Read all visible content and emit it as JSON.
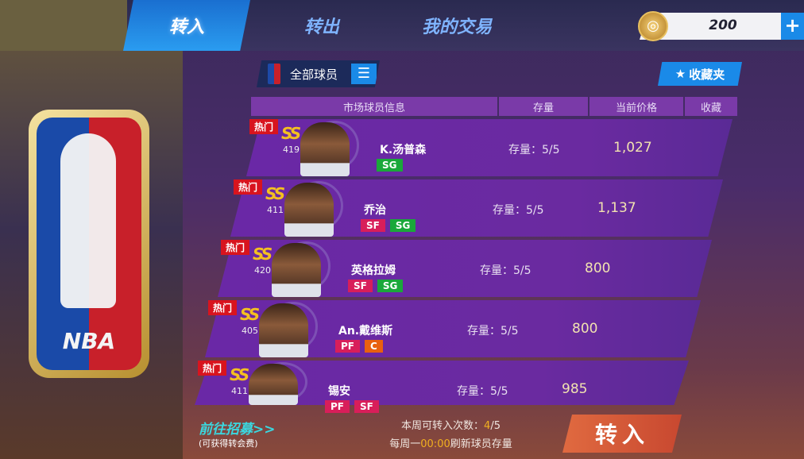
{
  "tabs": [
    {
      "label": "转入",
      "active": true
    },
    {
      "label": "转出"
    },
    {
      "label": "我的交易"
    }
  ],
  "coins": {
    "value": "200",
    "plus": "+"
  },
  "filter": {
    "label": "全部球员",
    "menu_icon": "hamburger-icon"
  },
  "favorites": {
    "label": "收藏夹",
    "icon": "star-icon"
  },
  "table_headers": [
    "市场球员信息",
    "存量",
    "当前价格",
    "收藏"
  ],
  "players": [
    {
      "hot": "热门",
      "grade": "SS",
      "rating": "419",
      "name": "K.汤普森",
      "positions": [
        {
          "p": "SG",
          "c": "green"
        }
      ],
      "stock": "存量：5/5",
      "price": "1,027"
    },
    {
      "hot": "热门",
      "grade": "SS",
      "rating": "411",
      "name": "乔治",
      "positions": [
        {
          "p": "SF",
          "c": "red"
        },
        {
          "p": "SG",
          "c": "green"
        }
      ],
      "stock": "存量：5/5",
      "price": "1,137"
    },
    {
      "hot": "热门",
      "grade": "SS",
      "rating": "420",
      "name": "英格拉姆",
      "positions": [
        {
          "p": "SF",
          "c": "red"
        },
        {
          "p": "SG",
          "c": "green"
        }
      ],
      "stock": "存量：5/5",
      "price": "800"
    },
    {
      "hot": "热门",
      "grade": "SS",
      "rating": "405",
      "name": "An.戴维斯",
      "positions": [
        {
          "p": "PF",
          "c": "red"
        },
        {
          "p": "C",
          "c": "orange"
        }
      ],
      "stock": "存量：5/5",
      "price": "800"
    },
    {
      "hot": "热门",
      "grade": "SS",
      "rating": "411",
      "name": "锡安",
      "positions": [
        {
          "p": "PF",
          "c": "red"
        },
        {
          "p": "SF",
          "c": "red"
        }
      ],
      "stock": "存量：5/5",
      "price": "985"
    }
  ],
  "footer": {
    "recruit": "前往招募>>",
    "recruit_sub": "(可获得转会费)",
    "weekly_label": "本周可转入次数：",
    "weekly_used": "4",
    "weekly_total": "/5",
    "refresh_prefix": "每周一",
    "refresh_time": "00:00",
    "refresh_suffix": "刷新球员存量",
    "transfer_button": "转入"
  },
  "logo_text": "NBA"
}
